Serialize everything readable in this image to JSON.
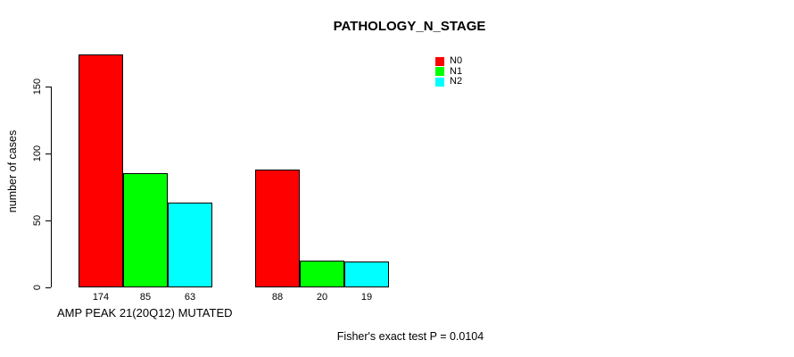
{
  "chart_data": {
    "type": "bar",
    "title": "PATHOLOGY_N_STAGE",
    "ylabel": "number of cases",
    "xlabel": "AMP PEAK 21(20Q12) MUTATED",
    "annotation": "Fisher's exact test P = 0.0104",
    "categories": [
      "",
      ""
    ],
    "series": [
      {
        "name": "N0",
        "color": "#ff0000",
        "values": [
          174,
          88
        ]
      },
      {
        "name": "N1",
        "color": "#00ff00",
        "values": [
          85,
          20
        ]
      },
      {
        "name": "N2",
        "color": "#00ffff",
        "values": [
          63,
          19
        ]
      }
    ],
    "bar_value_labels": [
      "174",
      "85",
      "63",
      "88",
      "20",
      "19"
    ],
    "yticks": [
      "0",
      "50",
      "100",
      "150"
    ],
    "ylim": [
      0,
      175
    ],
    "grid": false,
    "legend_position": "top-right",
    "bar_border_color": "#000000"
  }
}
